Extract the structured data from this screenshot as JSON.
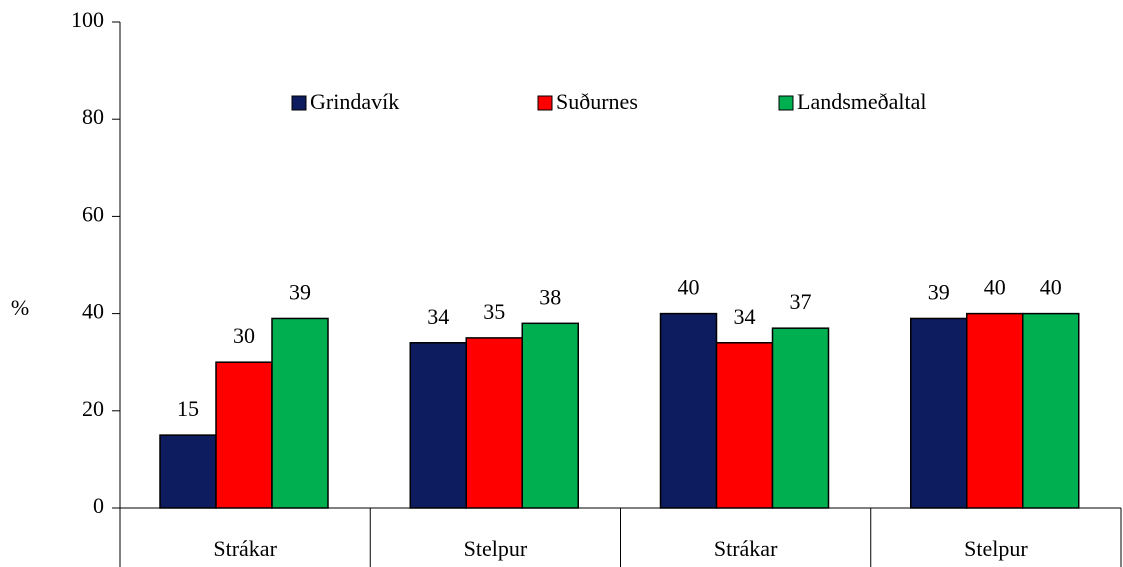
{
  "chart_data": {
    "type": "bar",
    "categories": [
      "Strákar",
      "Stelpur",
      "Strákar",
      "Stelpur"
    ],
    "series": [
      {
        "name": "Grindavík",
        "color": "#0d1c5e",
        "values": [
          15,
          34,
          40,
          39
        ]
      },
      {
        "name": "Suðurnes",
        "color": "#ff0000",
        "values": [
          30,
          35,
          34,
          40
        ]
      },
      {
        "name": "Landsmeðaltal",
        "color": "#00b050",
        "values": [
          39,
          38,
          37,
          40
        ]
      }
    ],
    "ylabel": "%",
    "ylim": [
      0,
      100
    ],
    "yticks": [
      0,
      20,
      40,
      60,
      80,
      100
    ],
    "legend": "top"
  }
}
